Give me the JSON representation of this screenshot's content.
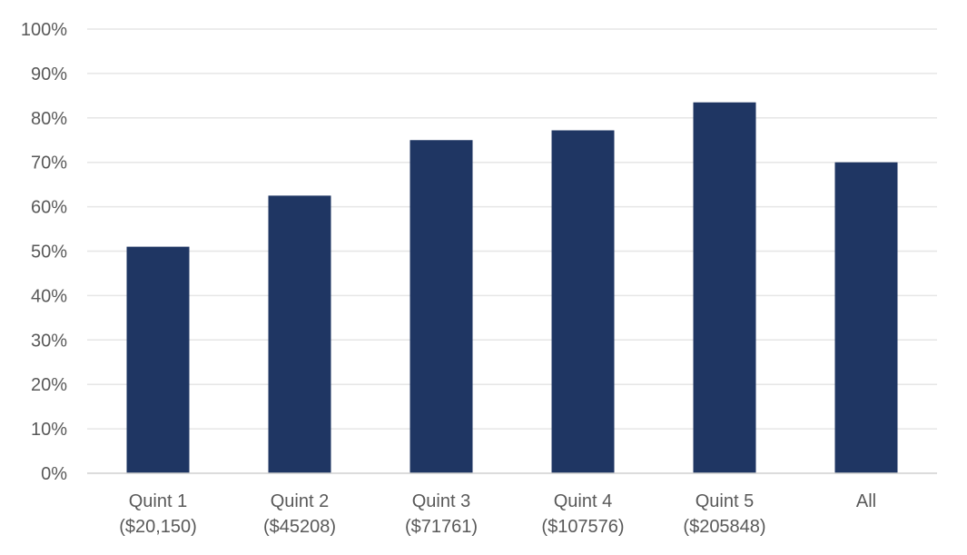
{
  "chart_data": {
    "type": "bar",
    "title": "",
    "xlabel": "",
    "ylabel": "",
    "categories": [
      [
        "Quint 1",
        "($20,150)"
      ],
      [
        "Quint 2",
        "($45208)"
      ],
      [
        "Quint 3",
        "($71761)"
      ],
      [
        "Quint 4",
        "($107576)"
      ],
      [
        "Quint 5",
        "($205848)"
      ],
      [
        "All"
      ]
    ],
    "values": [
      51,
      62.5,
      75,
      77.2,
      83.5,
      70
    ],
    "ylim": [
      0,
      100
    ],
    "yticks": [
      0,
      10,
      20,
      30,
      40,
      50,
      60,
      70,
      80,
      90,
      100
    ],
    "ytick_labels": [
      "0%",
      "10%",
      "20%",
      "30%",
      "40%",
      "50%",
      "60%",
      "70%",
      "80%",
      "90%",
      "100%"
    ],
    "grid": true,
    "legend": "none",
    "colors": {
      "bar": "#1f3663",
      "grid": "#e6e6e6",
      "axis": "#d0d0d0",
      "text": "#595959"
    }
  }
}
